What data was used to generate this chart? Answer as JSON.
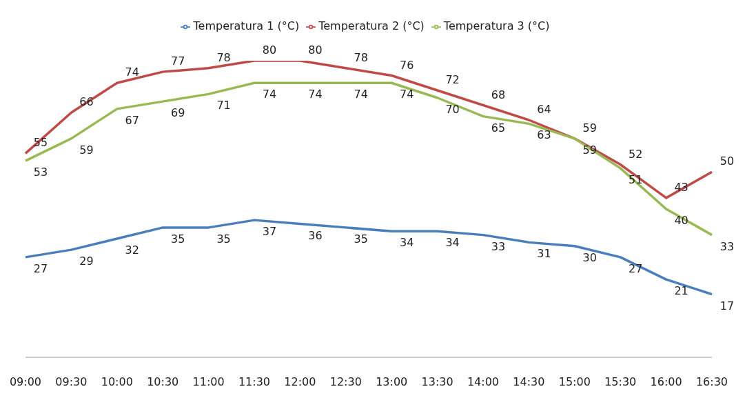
{
  "chart_data": {
    "type": "line",
    "categories": [
      "09:00",
      "09:30",
      "10:00",
      "10:30",
      "11:00",
      "11:30",
      "12:00",
      "12:30",
      "13:00",
      "13:30",
      "14:00",
      "14:30",
      "15:00",
      "15:30",
      "16:00",
      "16:30"
    ],
    "series": [
      {
        "name": "Temperatura 1 (°C)",
        "color": "#4a7ebb",
        "values": [
          27,
          29,
          32,
          35,
          35,
          37,
          36,
          35,
          34,
          34,
          33,
          31,
          30,
          27,
          21,
          17
        ]
      },
      {
        "name": "Temperatura 2 (°C)",
        "color": "#be4b48",
        "values": [
          55,
          66,
          74,
          77,
          78,
          80,
          80,
          78,
          76,
          72,
          68,
          64,
          59,
          52,
          43,
          50
        ]
      },
      {
        "name": "Temperatura 3 (°C)",
        "color": "#98b954",
        "values": [
          53,
          59,
          67,
          69,
          71,
          74,
          74,
          74,
          74,
          70,
          65,
          63,
          59,
          51,
          40,
          33
        ]
      }
    ],
    "tick_labels": "x",
    "grid": false,
    "legend": "top",
    "marker": "none",
    "line_style": "solid",
    "data_labels": true
  }
}
